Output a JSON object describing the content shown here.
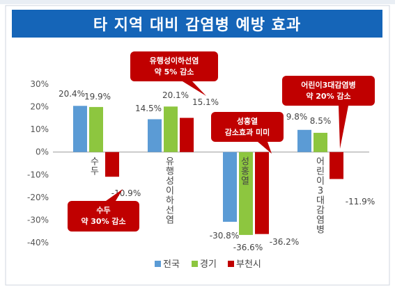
{
  "chart_data": {
    "type": "bar",
    "title": "타 지역 대비 감염병 예방 효과",
    "categories": [
      "수두",
      "유행성이하선염",
      "성홍열",
      "어린이3대감염병"
    ],
    "series": [
      {
        "name": "전국",
        "color": "#5b9bd5",
        "values": [
          20.4,
          14.5,
          -30.8,
          9.8
        ]
      },
      {
        "name": "경기",
        "color": "#8dc63f",
        "values": [
          19.9,
          20.1,
          -36.6,
          8.5
        ]
      },
      {
        "name": "부천시",
        "color": "#c00000",
        "values": [
          -10.9,
          15.1,
          -36.2,
          -11.9
        ]
      }
    ],
    "data_labels": [
      [
        "20.4%",
        "14.5%",
        "-30.8%",
        "9.8%"
      ],
      [
        "19.9%",
        "20.1%",
        "-36.6%",
        "8.5%"
      ],
      [
        "-10.9%",
        "15.1%",
        "-36.2%",
        "-11.9%"
      ]
    ],
    "ylim": [
      -40,
      30
    ],
    "yticks": [
      30,
      20,
      10,
      0,
      -10,
      -20,
      -30,
      -40
    ],
    "ytick_labels": [
      "30%",
      "20%",
      "10%",
      "0%",
      "-10%",
      "-20%",
      "-30%",
      "-40%"
    ],
    "grid": false,
    "legend_position": "bottom",
    "callouts": [
      {
        "lines": [
          "수두",
          "약 30% 감소"
        ]
      },
      {
        "lines": [
          "유행성이하선염",
          "약 5% 감소"
        ]
      },
      {
        "lines": [
          "성홍열",
          "감소효과 미미"
        ]
      },
      {
        "lines": [
          "어린이3대감염병",
          "약 20% 감소"
        ]
      }
    ],
    "callout_color": "#c00000"
  }
}
